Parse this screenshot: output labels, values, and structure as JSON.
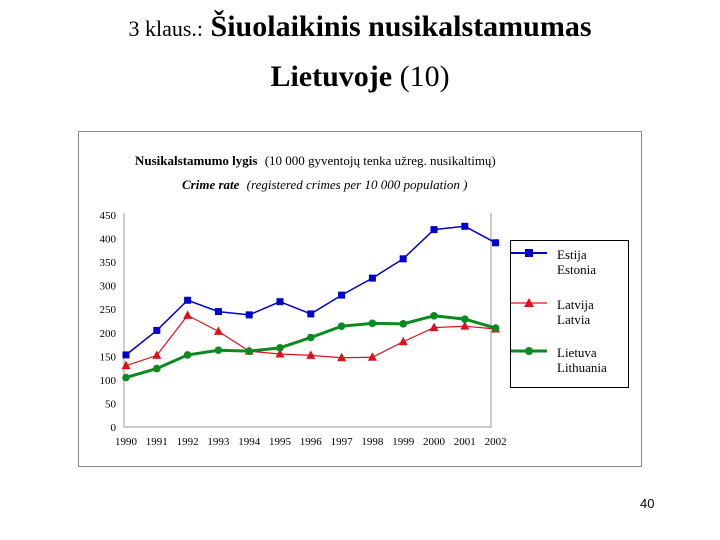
{
  "slide": {
    "title_prefix": "3 klaus.:",
    "title_main": "Šiuolaikinis nusikalstamumas",
    "title_line2_bold": "Lietuvoje",
    "title_line2_suffix": "(10)",
    "page_number": "40"
  },
  "chart_data": {
    "type": "line",
    "title_lt_bold": "Nusikalstamumo lygis",
    "title_lt_rest": "(10 000 gyventojų tenka užreg. nusikaltimų)",
    "title_en_bold": "Crime rate",
    "title_en_rest": "(registered crimes per 10 000 population )",
    "categories": [
      "1990",
      "1991",
      "1992",
      "1993",
      "1994",
      "1995",
      "1996",
      "1997",
      "1998",
      "1999",
      "2000",
      "2001",
      "2002"
    ],
    "y_ticks": [
      "450",
      "400",
      "350",
      "300",
      "250",
      "200",
      "150",
      "100",
      "50",
      "0"
    ],
    "ylim": [
      0,
      450
    ],
    "grid": false,
    "legend_position": "right",
    "series": [
      {
        "name_lt": "Estija",
        "name_en": "Estonia",
        "color": "#0000cc",
        "marker": "square",
        "values": [
          153,
          205,
          269,
          245,
          238,
          266,
          240,
          280,
          316,
          357,
          419,
          426,
          391
        ]
      },
      {
        "name_lt": "Latvija",
        "name_en": "Latvia",
        "color": "#e0101b",
        "marker": "triangle",
        "values": [
          130,
          152,
          237,
          203,
          161,
          155,
          152,
          147,
          148,
          181,
          211,
          214,
          208
        ]
      },
      {
        "name_lt": "Lietuva",
        "name_en": "Lithuania",
        "color": "#0a8a1f",
        "marker": "circle",
        "values": [
          105,
          124,
          153,
          163,
          161,
          168,
          190,
          214,
          220,
          219,
          236,
          229,
          210
        ]
      }
    ]
  }
}
